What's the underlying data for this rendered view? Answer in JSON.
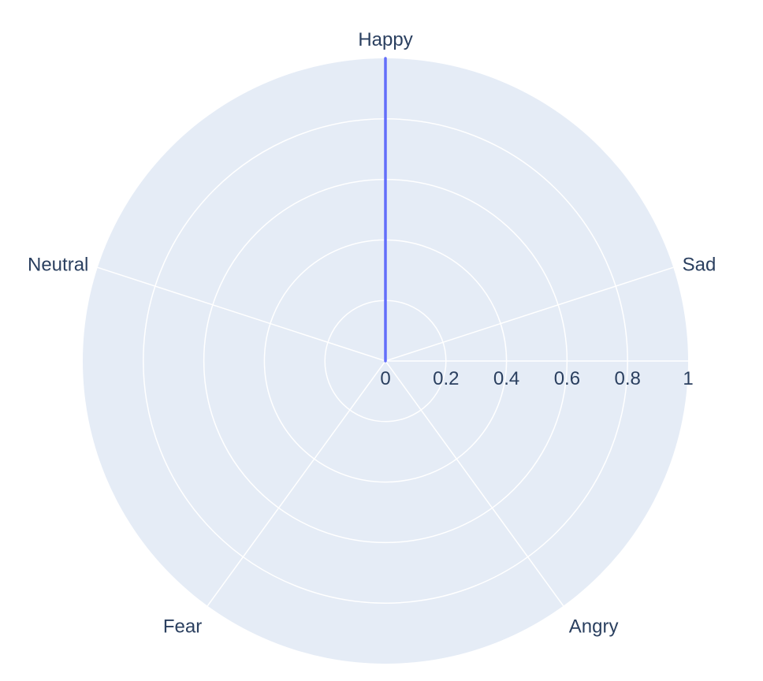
{
  "chart_data": {
    "type": "radar",
    "title": "",
    "categories": [
      "Happy",
      "Sad",
      "Angry",
      "Fear",
      "Neutral"
    ],
    "series": [
      {
        "values": [
          1,
          0,
          0,
          0,
          0
        ],
        "color": "#636efa"
      }
    ],
    "radial_range": [
      0,
      1
    ],
    "radial_ticks": [
      "0",
      "0.2",
      "0.4",
      "0.6",
      "0.8",
      "1"
    ],
    "grid": true,
    "background_color": "#e5ecf6",
    "legend": "none"
  }
}
